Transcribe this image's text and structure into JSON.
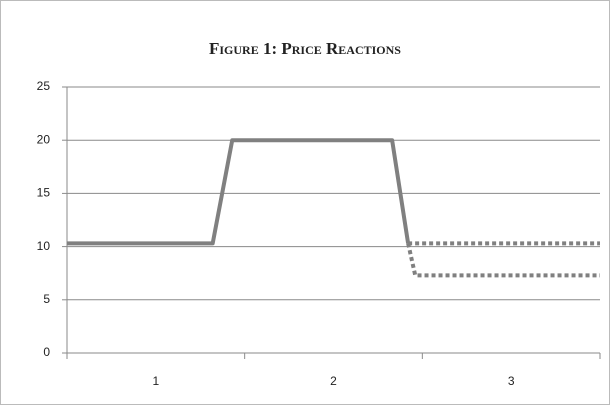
{
  "chart_data": {
    "type": "line",
    "title": "Figure 1: Price Reactions",
    "categories": [
      "1",
      "2",
      "3"
    ],
    "xlim": [
      0,
      3
    ],
    "ylim": [
      0,
      25
    ],
    "yticks": [
      0,
      5,
      10,
      15,
      20,
      25
    ],
    "grid": true,
    "series": [
      {
        "color": "#808080",
        "style": "solid",
        "x": [
          0,
          0.82,
          0.93,
          1.83,
          1.92
        ],
        "values": [
          10.3,
          10.3,
          20,
          20,
          10.3
        ]
      },
      {
        "color": "#808080",
        "style": "dotted",
        "x": [
          1.92,
          3
        ],
        "values": [
          10.3,
          10.3
        ]
      },
      {
        "color": "#808080",
        "style": "dotted",
        "x": [
          1.92,
          1.96,
          3
        ],
        "values": [
          10.3,
          7.3,
          7.3
        ]
      }
    ]
  }
}
